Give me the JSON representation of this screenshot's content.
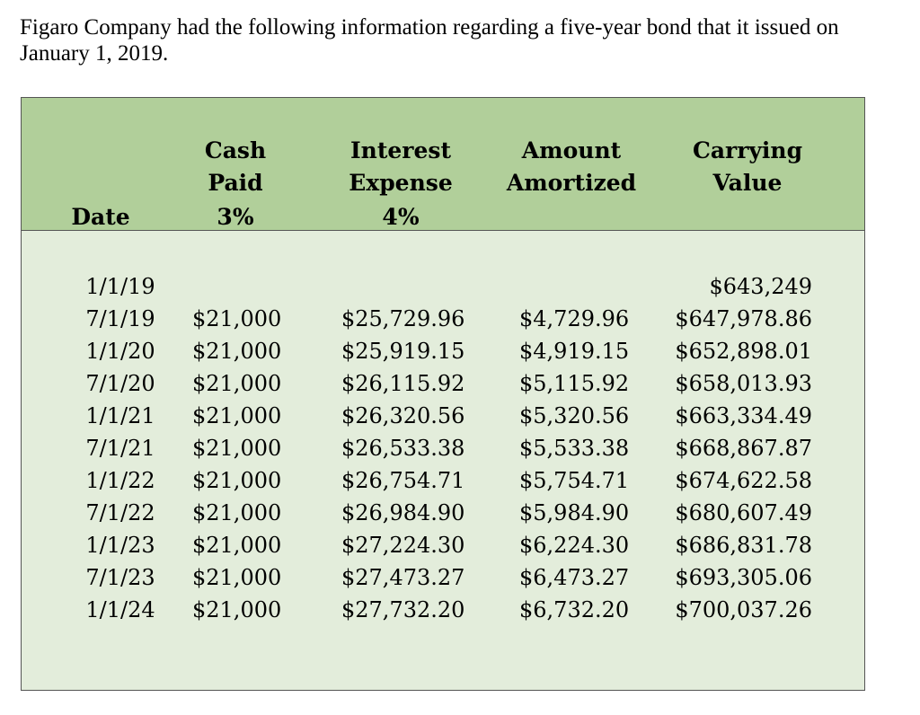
{
  "intro": "Figaro Company had the following information regarding a five-year bond that it issued on January 1, 2019.",
  "table": {
    "headers": {
      "date": [
        "Date"
      ],
      "cash": [
        "Cash",
        "Paid",
        "3%"
      ],
      "interest": [
        "Interest",
        "Expense",
        "4%"
      ],
      "amortized": [
        "Amount",
        "Amortized"
      ],
      "carrying": [
        "Carrying",
        "Value"
      ]
    },
    "rows": [
      {
        "date": "1/1/19",
        "cash": "",
        "interest": "",
        "amortized": "",
        "carrying": "$643,249"
      },
      {
        "date": "7/1/19",
        "cash": "$21,000",
        "interest": "$25,729.96",
        "amortized": "$4,729.96",
        "carrying": "$647,978.86"
      },
      {
        "date": "1/1/20",
        "cash": "$21,000",
        "interest": "$25,919.15",
        "amortized": "$4,919.15",
        "carrying": "$652,898.01"
      },
      {
        "date": "7/1/20",
        "cash": "$21,000",
        "interest": "$26,115.92",
        "amortized": "$5,115.92",
        "carrying": "$658,013.93"
      },
      {
        "date": "1/1/21",
        "cash": "$21,000",
        "interest": "$26,320.56",
        "amortized": "$5,320.56",
        "carrying": "$663,334.49"
      },
      {
        "date": "7/1/21",
        "cash": "$21,000",
        "interest": "$26,533.38",
        "amortized": "$5,533.38",
        "carrying": "$668,867.87"
      },
      {
        "date": "1/1/22",
        "cash": "$21,000",
        "interest": "$26,754.71",
        "amortized": "$5,754.71",
        "carrying": "$674,622.58"
      },
      {
        "date": "7/1/22",
        "cash": "$21,000",
        "interest": "$26,984.90",
        "amortized": "$5,984.90",
        "carrying": "$680,607.49"
      },
      {
        "date": "1/1/23",
        "cash": "$21,000",
        "interest": "$27,224.30",
        "amortized": "$6,224.30",
        "carrying": "$686,831.78"
      },
      {
        "date": "7/1/23",
        "cash": "$21,000",
        "interest": "$27,473.27",
        "amortized": "$6,473.27",
        "carrying": "$693,305.06"
      },
      {
        "date": "1/1/24",
        "cash": "$21,000",
        "interest": "$27,732.20",
        "amortized": "$6,732.20",
        "carrying": "$700,037.26"
      }
    ]
  }
}
